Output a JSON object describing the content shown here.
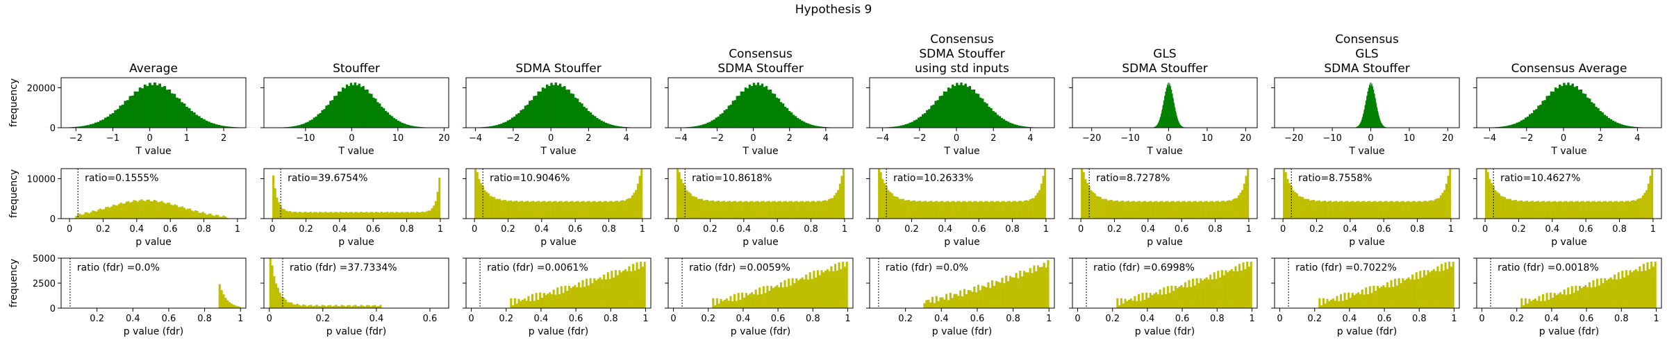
{
  "suptitle": "Hypothesis 9",
  "row_xlabels": [
    "T value",
    "p value",
    "p value (fdr)"
  ],
  "ylabel": "frequency",
  "colors": {
    "t_hist": "#008000",
    "p_hist": "#bfbf00",
    "threshold_line": "#000000"
  },
  "chart_data": [
    {
      "type": "histogram",
      "title": "Average",
      "distribution": "normal",
      "mean": 0.1,
      "sd": 0.75,
      "t_xlim": [
        -2.4,
        2.6
      ],
      "t_xticks": [
        -2,
        -1,
        0,
        1,
        2
      ],
      "t_peak": 22000,
      "p_shape": "hump",
      "p_ratio": "ratio=0.1555%",
      "fdr_shape": "lowspike",
      "fdr_xlim": [
        0.0,
        1.03
      ],
      "fdr_xticks": [
        0.2,
        0.4,
        0.6,
        0.8,
        1.0
      ],
      "fdr_ratio": "ratio (fdr) =0.0%"
    },
    {
      "type": "histogram",
      "title": "Stouffer",
      "distribution": "normal",
      "mean": 0.5,
      "sd": 5,
      "t_xlim": [
        -19,
        21
      ],
      "t_xticks": [
        -10,
        0,
        10,
        20
      ],
      "t_peak": 22000,
      "p_shape": "bathtub_strong",
      "p_ratio": "ratio=39.6754%",
      "fdr_shape": "decay",
      "fdr_xlim": [
        -0.02,
        0.67
      ],
      "fdr_xticks": [
        0.0,
        0.2,
        0.4,
        0.6
      ],
      "fdr_ratio": "ratio (fdr) =37.7334%"
    },
    {
      "type": "histogram",
      "title": "SDMA Stouffer",
      "distribution": "normal",
      "mean": 0.2,
      "sd": 1.3,
      "t_xlim": [
        -4.5,
        5.3
      ],
      "t_xticks": [
        -4,
        -2,
        0,
        2,
        4
      ],
      "t_peak": 22000,
      "p_shape": "bathtub",
      "p_ratio": "ratio=10.9046%",
      "fdr_shape": "rise",
      "fdr_xlim": [
        -0.03,
        1.03
      ],
      "fdr_xticks": [
        0.0,
        0.2,
        0.4,
        0.6,
        0.8,
        1.0
      ],
      "fdr_ratio": "ratio (fdr) =0.0061%"
    },
    {
      "type": "histogram",
      "title": "Consensus\nSDMA Stouffer",
      "distribution": "normal",
      "mean": 0.2,
      "sd": 1.3,
      "t_xlim": [
        -4.7,
        5.5
      ],
      "t_xticks": [
        -4,
        -2,
        0,
        2,
        4
      ],
      "t_peak": 22000,
      "p_shape": "bathtub",
      "p_ratio": "ratio=10.8618%",
      "fdr_shape": "rise",
      "fdr_xlim": [
        -0.03,
        1.03
      ],
      "fdr_xticks": [
        0.0,
        0.2,
        0.4,
        0.6,
        0.8,
        1.0
      ],
      "fdr_ratio": "ratio (fdr) =0.0059%"
    },
    {
      "type": "histogram",
      "title": "Consensus\nSDMA Stouffer\nusing std inputs",
      "distribution": "normal",
      "mean": 0.2,
      "sd": 1.3,
      "t_xlim": [
        -4.7,
        5.3
      ],
      "t_xticks": [
        -4,
        -2,
        0,
        2,
        4
      ],
      "t_peak": 22000,
      "p_shape": "bathtub",
      "p_ratio": "ratio=10.2633%",
      "fdr_shape": "rise_late",
      "fdr_xlim": [
        0.0,
        1.03
      ],
      "fdr_xticks": [
        0.2,
        0.4,
        0.6,
        0.8,
        1.0
      ],
      "fdr_ratio": "ratio (fdr) =0.0%"
    },
    {
      "type": "histogram",
      "title": "GLS\nSDMA Stouffer",
      "distribution": "normal",
      "mean": 0.0,
      "sd": 1.3,
      "t_xlim": [
        -25,
        23
      ],
      "t_xticks": [
        -20,
        -10,
        0,
        10,
        20
      ],
      "t_peak": 22000,
      "p_shape": "bathtub",
      "p_ratio": "ratio=8.7278%",
      "fdr_shape": "rise",
      "fdr_xlim": [
        -0.03,
        1.03
      ],
      "fdr_xticks": [
        0.0,
        0.2,
        0.4,
        0.6,
        0.8,
        1.0
      ],
      "fdr_ratio": "ratio (fdr) =0.6998%"
    },
    {
      "type": "histogram",
      "title": "Consensus\nGLS\nSDMA Stouffer",
      "distribution": "normal",
      "mean": 0.0,
      "sd": 1.3,
      "t_xlim": [
        -25,
        23
      ],
      "t_xticks": [
        -20,
        -10,
        0,
        10,
        20
      ],
      "t_peak": 22000,
      "p_shape": "bathtub",
      "p_ratio": "ratio=8.7558%",
      "fdr_shape": "rise",
      "fdr_xlim": [
        -0.03,
        1.03
      ],
      "fdr_xticks": [
        0.0,
        0.2,
        0.4,
        0.6,
        0.8,
        1.0
      ],
      "fdr_ratio": "ratio (fdr) =0.7022%"
    },
    {
      "type": "histogram",
      "title": "Consensus Average",
      "distribution": "normal",
      "mean": 0.2,
      "sd": 1.3,
      "t_xlim": [
        -4.7,
        5.3
      ],
      "t_xticks": [
        -4,
        -2,
        0,
        2,
        4
      ],
      "t_peak": 22000,
      "p_shape": "bathtub",
      "p_ratio": "ratio=10.4627%",
      "fdr_shape": "rise",
      "fdr_xlim": [
        -0.03,
        1.03
      ],
      "fdr_xticks": [
        0.0,
        0.2,
        0.4,
        0.6,
        0.8,
        1.0
      ],
      "fdr_ratio": "ratio (fdr) =0.0018%"
    }
  ],
  "row_ylims": [
    [
      0,
      25000
    ],
    [
      0,
      12500
    ],
    [
      0,
      5000
    ]
  ],
  "row_yticks": [
    [
      0,
      20000
    ],
    [
      0,
      10000
    ],
    [
      0,
      2500,
      5000
    ]
  ],
  "threshold": 0.05
}
